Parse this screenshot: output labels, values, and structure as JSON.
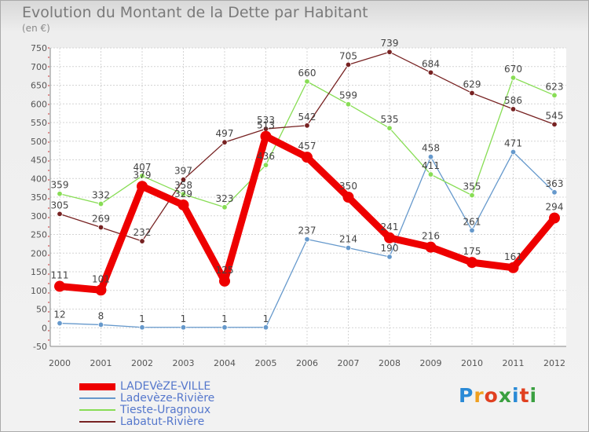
{
  "title": "Evolution du Montant de la Dette par Habitant",
  "unit": "(en €)",
  "logo": {
    "text": "Proxiti",
    "colors": [
      "#2a8ad6",
      "#f0a020",
      "#e04020",
      "#3aa040",
      "#2a8ad6",
      "#e04020",
      "#3aa040"
    ]
  },
  "chart_data": {
    "type": "line",
    "title": "Evolution du Montant de la Dette par Habitant",
    "ylabel": "(en €)",
    "xlabel": "",
    "ylim": [
      -50,
      750
    ],
    "yticks": [
      -50,
      0,
      50,
      100,
      150,
      200,
      250,
      300,
      350,
      400,
      450,
      500,
      550,
      600,
      650,
      700,
      750
    ],
    "categories": [
      "2000",
      "2001",
      "2002",
      "2003",
      "2004",
      "2005",
      "2006",
      "2007",
      "2008",
      "2009",
      "2010",
      "2011",
      "2012"
    ],
    "grid": true,
    "legend_position": "bottom-left",
    "series": [
      {
        "name": "LADEVèZE-VILLE",
        "color": "#ee0000",
        "emphasis": true,
        "values": [
          111,
          101,
          379,
          329,
          125,
          513,
          457,
          350,
          241,
          216,
          175,
          161,
          294
        ]
      },
      {
        "name": "Ladevèze-Rivière",
        "color": "#6699cc",
        "values": [
          12,
          8,
          1,
          1,
          1,
          1,
          237,
          214,
          190,
          458,
          261,
          471,
          363
        ]
      },
      {
        "name": "Tieste-Uragnoux",
        "color": "#88dd55",
        "values": [
          359,
          332,
          407,
          358,
          323,
          436,
          660,
          599,
          535,
          411,
          355,
          670,
          623
        ]
      },
      {
        "name": "Labatut-Rivière",
        "color": "#772222",
        "values": [
          305,
          269,
          232,
          397,
          497,
          533,
          542,
          705,
          739,
          684,
          629,
          586,
          545
        ]
      }
    ]
  }
}
